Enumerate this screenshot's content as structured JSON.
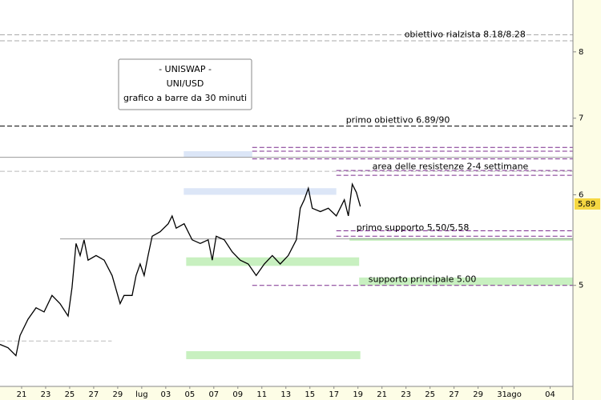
{
  "chart_data": {
    "type": "line",
    "color": "#000000",
    "log_scale": true,
    "xlim": [
      19.2,
      66.9
    ],
    "xticks": [
      21,
      23,
      25,
      27,
      29,
      {
        "value": 31,
        "label": "lug"
      },
      {
        "value": 33,
        "label": "03"
      },
      {
        "value": 35,
        "label": "05"
      },
      {
        "value": 37,
        "label": "07"
      },
      {
        "value": 39,
        "label": "09"
      },
      {
        "value": 41,
        "label": "11"
      },
      {
        "value": 43,
        "label": "13"
      },
      {
        "value": 45,
        "label": "15"
      },
      {
        "value": 47,
        "label": "17"
      },
      {
        "value": 49,
        "label": "19"
      },
      {
        "value": 51,
        "label": "21"
      },
      {
        "value": 53,
        "label": "23"
      },
      {
        "value": 55,
        "label": "25"
      },
      {
        "value": 57,
        "label": "27"
      },
      {
        "value": 59,
        "label": "29"
      },
      {
        "value": 61,
        "label": "31"
      },
      {
        "value": 62,
        "label": "ago"
      },
      {
        "value": 65,
        "label": "04"
      }
    ],
    "ylim": [
      4.08,
      8.88
    ],
    "yticks": [
      5,
      6,
      7,
      8
    ],
    "x": [
      19.2,
      19.87,
      20.53,
      20.87,
      21.53,
      22.2,
      22.87,
      23.53,
      24.2,
      24.87,
      25.2,
      25.53,
      25.87,
      26.2,
      26.53,
      27.2,
      27.87,
      28.53,
      29.2,
      29.53,
      30.2,
      30.53,
      30.87,
      31.2,
      31.53,
      31.87,
      32.53,
      33.2,
      33.53,
      33.87,
      34.53,
      35.2,
      35.87,
      36.53,
      36.87,
      37.2,
      37.87,
      38.53,
      39.2,
      39.87,
      40.53,
      41.2,
      41.87,
      42.53,
      43.2,
      43.87,
      44.2,
      44.53,
      44.87,
      45.2,
      45.87,
      46.53,
      47.2,
      47.87,
      48.2,
      48.53,
      48.87,
      49.2
    ],
    "values": [
      4.44,
      4.41,
      4.34,
      4.52,
      4.67,
      4.78,
      4.74,
      4.9,
      4.82,
      4.7,
      4.98,
      5.44,
      5.31,
      5.48,
      5.26,
      5.31,
      5.26,
      5.1,
      4.82,
      4.9,
      4.9,
      5.1,
      5.22,
      5.1,
      5.31,
      5.52,
      5.57,
      5.66,
      5.75,
      5.61,
      5.66,
      5.48,
      5.44,
      5.48,
      5.26,
      5.52,
      5.48,
      5.35,
      5.26,
      5.22,
      5.1,
      5.22,
      5.31,
      5.22,
      5.31,
      5.48,
      5.84,
      5.94,
      6.08,
      5.84,
      5.8,
      5.84,
      5.75,
      5.94,
      5.75,
      6.13,
      6.03,
      5.86
    ],
    "last_price": {
      "value": 5.89,
      "label": "5,89"
    },
    "info_box": [
      "- UNISWAP -",
      "UNI/USD",
      "grafico a barre da 30 minuti"
    ],
    "levels": [
      {
        "value": 8.28,
        "color": "#aaaaaa",
        "dash": true,
        "from": 19.2
      },
      {
        "value": 8.18,
        "color": "#aaaaaa",
        "dash": true,
        "from": 19.2
      },
      {
        "value": 6.89,
        "color": "#000000",
        "dash": true,
        "from": 19.2
      },
      {
        "value": 6.47,
        "color": "#999999",
        "dash": false,
        "from": 19.2
      },
      {
        "value": 6.29,
        "color": "#bbbbbb",
        "dash": true,
        "from": 19.2
      },
      {
        "value": 6.6,
        "color": "#7b2d8e",
        "dash": true,
        "from": 40.2
      },
      {
        "value": 6.55,
        "color": "#7b2d8e",
        "dash": true,
        "from": 40.2
      },
      {
        "value": 6.45,
        "color": "#7b2d8e",
        "dash": true,
        "from": 40.2
      },
      {
        "value": 6.3,
        "color": "#7b2d8e",
        "dash": true,
        "from": 47.2
      },
      {
        "value": 6.24,
        "color": "#7b2d8e",
        "dash": true,
        "from": 47.2
      },
      {
        "value": 5.58,
        "color": "#7b2d8e",
        "dash": true,
        "from": 47.2
      },
      {
        "value": 5.52,
        "color": "#7b2d8e",
        "dash": true,
        "from": 47.2
      },
      {
        "value": 5.49,
        "color": "#999999",
        "dash": false,
        "from": 24.2
      },
      {
        "value": 5,
        "color": "#7b2d8e",
        "dash": true,
        "from": 40.2
      },
      {
        "value": 4.47,
        "color": "#bbbbbb",
        "dash": true,
        "from": 19.2,
        "to": 28.5
      }
    ],
    "bands": [
      {
        "from": 34.5,
        "to": 40.2,
        "low": 6.47,
        "high": 6.55,
        "color": "#dce6f7"
      },
      {
        "from": 34.5,
        "to": 47.2,
        "low": 6.0,
        "high": 6.08,
        "color": "#dce6f7"
      },
      {
        "from": 34.7,
        "to": 49.1,
        "low": 5.2,
        "high": 5.29,
        "color": "#c8f0c0"
      },
      {
        "from": 49.1,
        "to": 66.9,
        "low": 5.0,
        "high": 5.08,
        "color": "#c8f0c0"
      },
      {
        "from": 34.7,
        "to": 49.2,
        "low": 4.31,
        "high": 4.38,
        "color": "#c8f0c0"
      },
      {
        "from": 48.3,
        "to": 66.9,
        "low": 5.47,
        "high": 5.5,
        "color": "#c8f0c0"
      }
    ],
    "annotations": [
      {
        "text": "obiettivo rialzista 8.18/8.28",
        "x": 52.87,
        "y": 8.28
      },
      {
        "text": "primo obiettivo 6.89/90",
        "x": 48.0,
        "y": 6.97
      },
      {
        "text": "area delle resistenze 2-4 settimane",
        "x": 50.2,
        "y": 6.35
      },
      {
        "text": "primo supporto 5.50/5.58",
        "x": 48.87,
        "y": 5.61
      },
      {
        "text": "supporto principale 5.00",
        "x": 49.87,
        "y": 5.06
      }
    ]
  }
}
